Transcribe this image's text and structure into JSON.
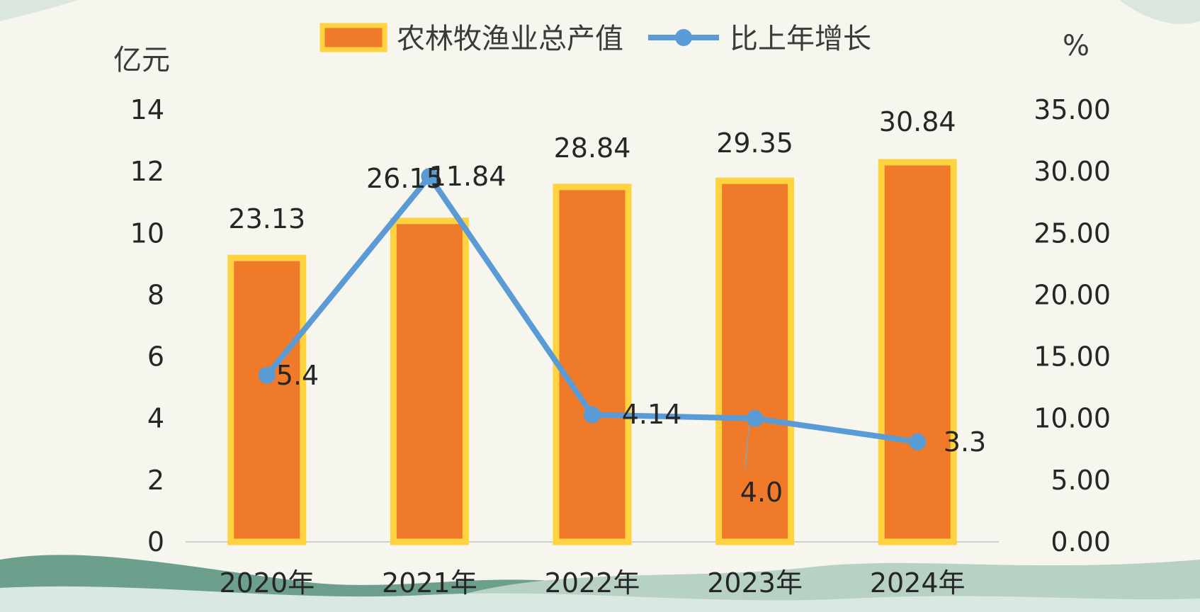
{
  "chart_data": {
    "type": "bar",
    "categories": [
      "2020年",
      "2021年",
      "2022年",
      "2023年",
      "2024年"
    ],
    "series": [
      {
        "name": "农林牧渔业总产值",
        "type": "bar",
        "axis": "left",
        "values": [
          9.2,
          10.4,
          11.5,
          11.7,
          12.3
        ],
        "value_labels": [
          "23.13",
          "26.15",
          "28.84",
          "29.35",
          "30.84"
        ],
        "color": "#ef7a29",
        "border_color": "#ffd23f"
      },
      {
        "name": "比上年增长",
        "type": "line",
        "axis": "right",
        "values": [
          13.5,
          29.6,
          10.3,
          10.0,
          8.1
        ],
        "value_labels": [
          "5.4",
          "11.84",
          "4.14",
          "4.0",
          "3.3"
        ],
        "color": "#5b9bd5"
      }
    ],
    "y_left": {
      "unit": "亿元",
      "ylim": [
        0,
        14
      ],
      "ticks": [
        "0",
        "2",
        "4",
        "6",
        "8",
        "10",
        "12",
        "14"
      ]
    },
    "y_right": {
      "unit": "%",
      "ylim": [
        0,
        35
      ],
      "ticks": [
        "0.00",
        "5.00",
        "10.00",
        "15.00",
        "20.00",
        "25.00",
        "30.00",
        "35.00"
      ]
    },
    "legend": "top-center",
    "grid": false
  }
}
